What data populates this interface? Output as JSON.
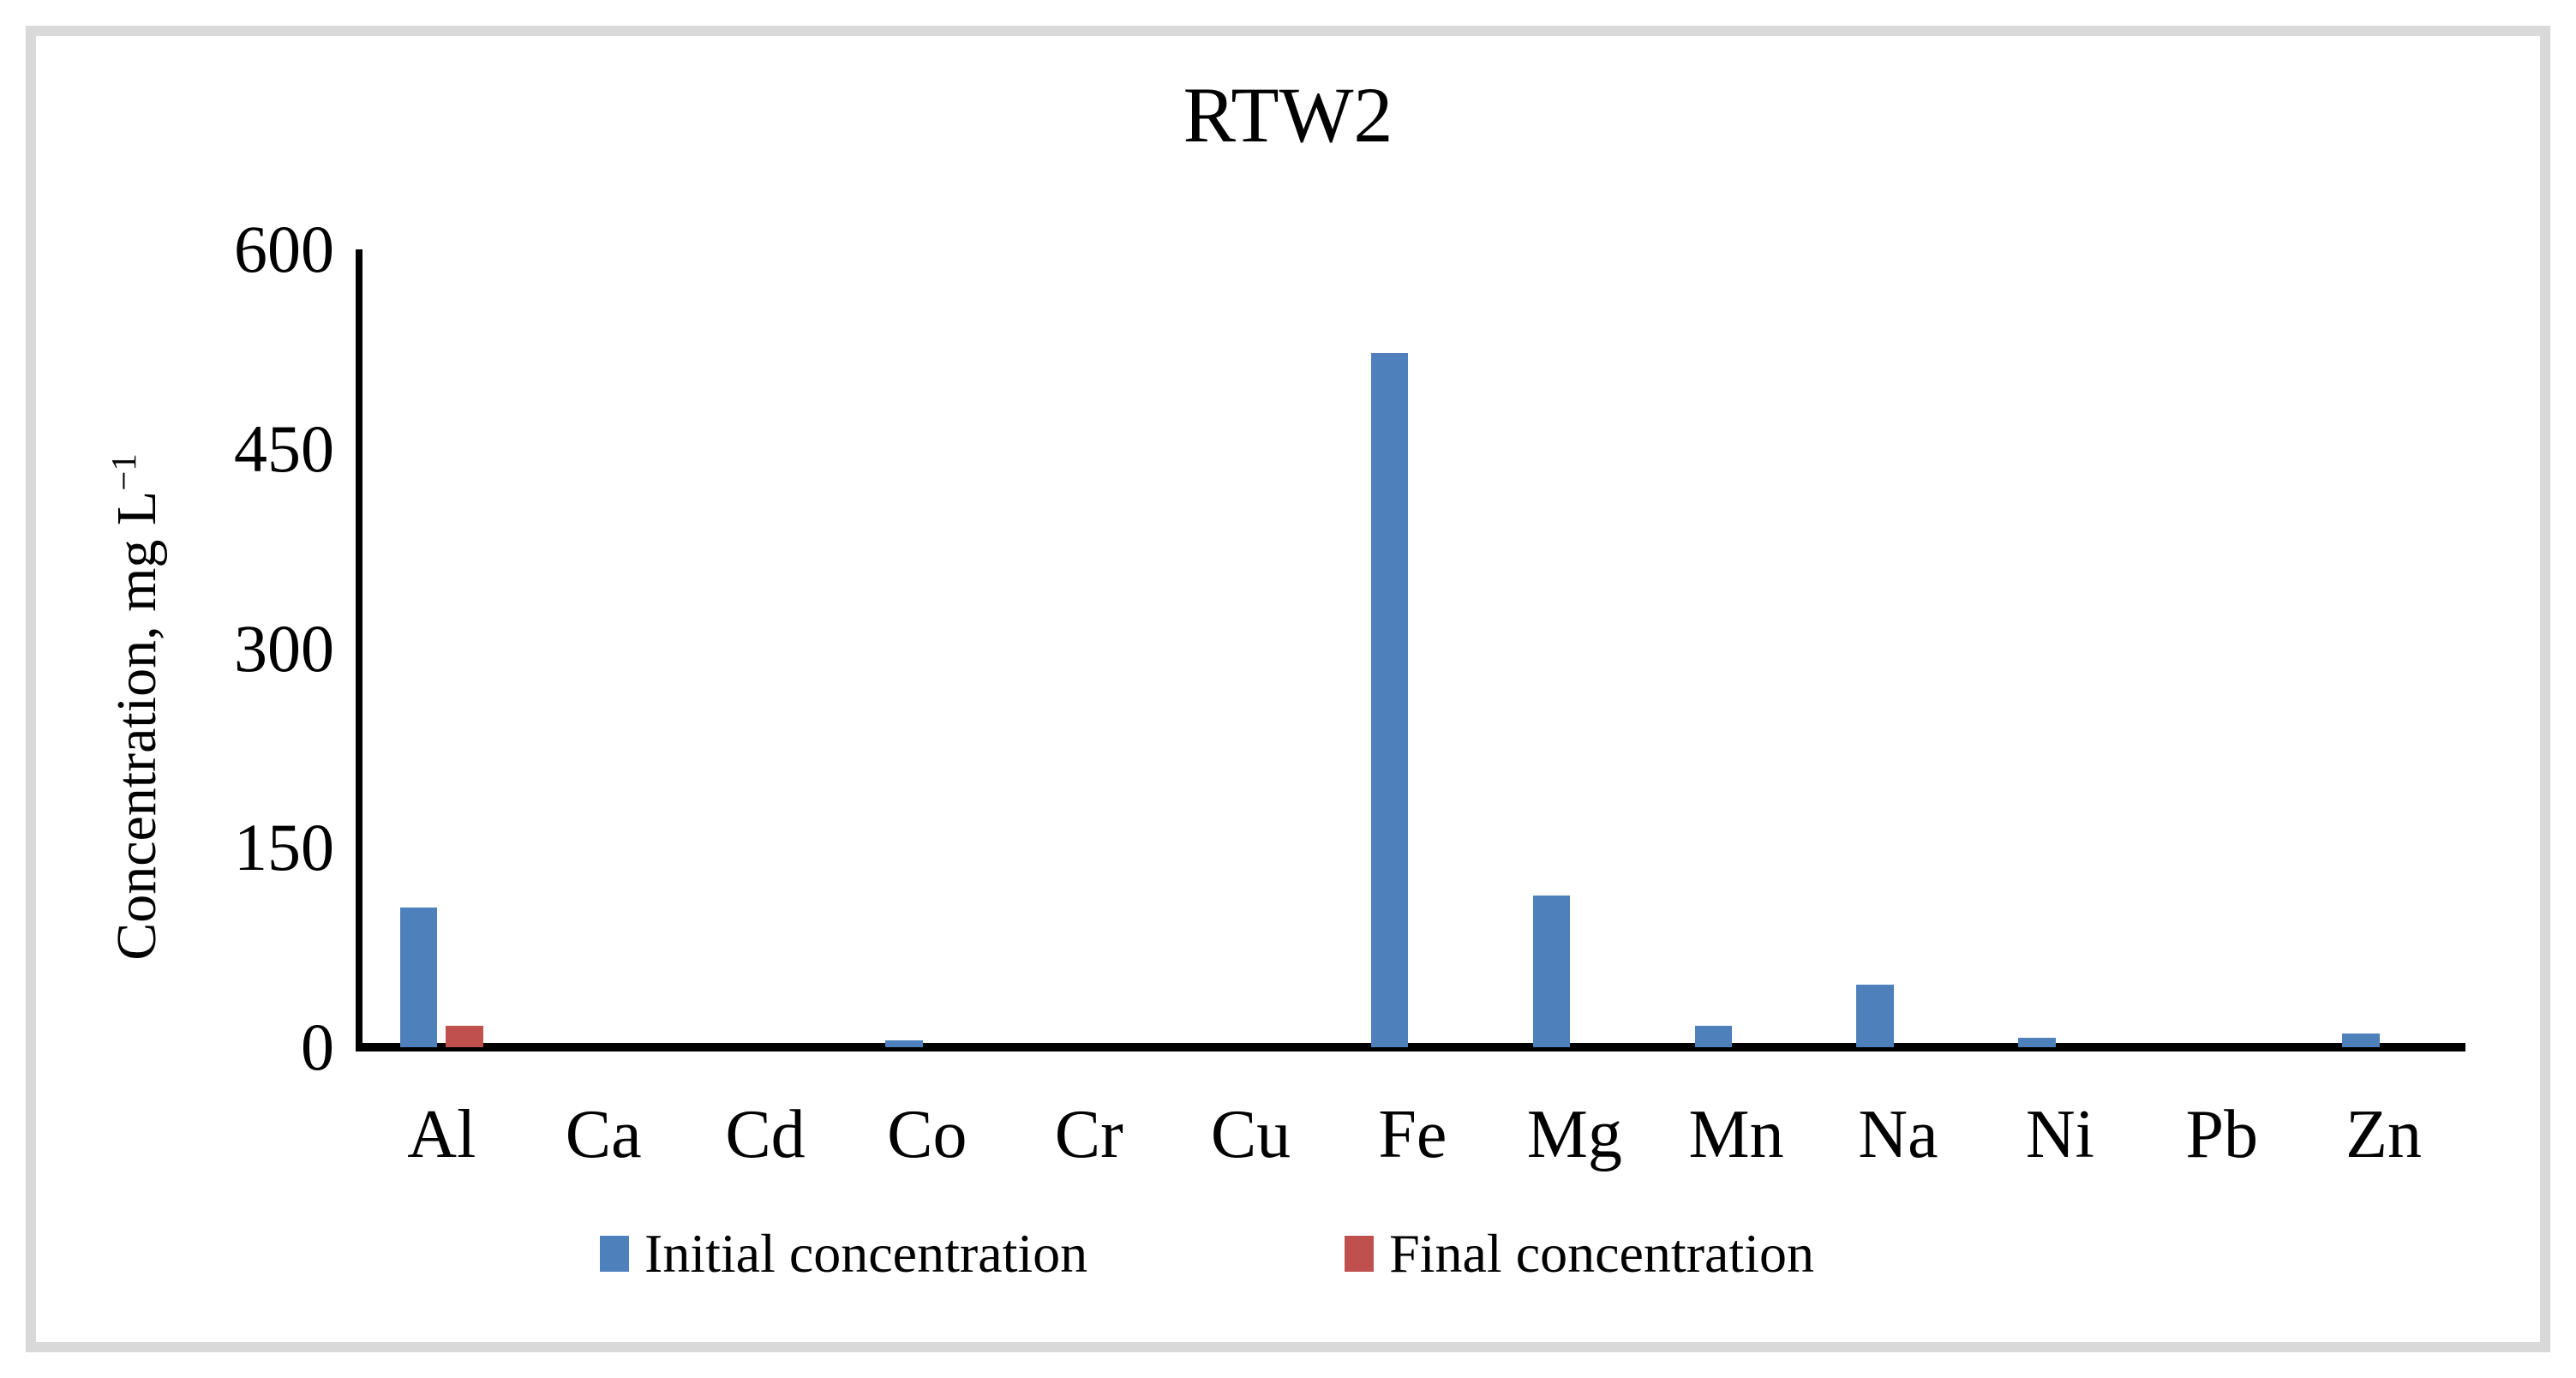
{
  "figure": {
    "border_color": "#d9d9d9",
    "background_color": "#ffffff",
    "text_color": "#000000"
  },
  "chart_data": {
    "type": "bar",
    "title": "RTW2",
    "categories": [
      "Al",
      "Ca",
      "Cd",
      "Co",
      "Cr",
      "Cu",
      "Fe",
      "Mg",
      "Mn",
      "Na",
      "Ni",
      "Pb",
      "Zn"
    ],
    "series": [
      {
        "name": "Initial concentration",
        "color": "#4E80BC",
        "values": [
          105,
          0,
          0,
          5,
          0,
          0,
          522,
          114,
          16,
          47,
          7,
          0,
          10
        ]
      },
      {
        "name": "Final concentration",
        "color": "#C0504D",
        "values": [
          16,
          0,
          0,
          0,
          0,
          0,
          0,
          0,
          0,
          0,
          0,
          0,
          0
        ]
      }
    ],
    "xlabel": "",
    "ylabel": "Concentration, mg L⁻¹",
    "ylabel_base": "Concentration, mg L",
    "ylabel_exponent": "−1",
    "ylim": [
      0,
      600
    ],
    "yticks": [
      0,
      150,
      300,
      450,
      600
    ],
    "grid": false,
    "legend_position": "bottom"
  }
}
